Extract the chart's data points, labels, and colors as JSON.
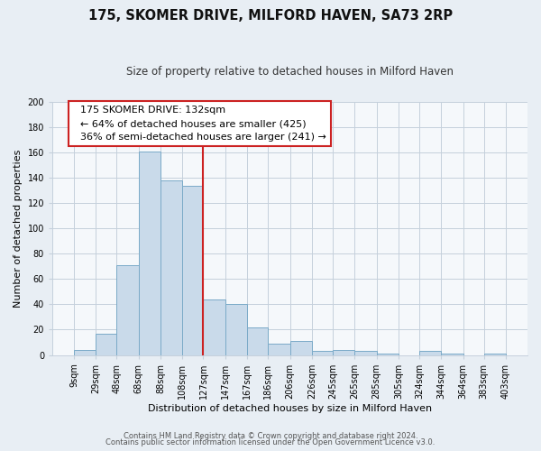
{
  "title": "175, SKOMER DRIVE, MILFORD HAVEN, SA73 2RP",
  "subtitle": "Size of property relative to detached houses in Milford Haven",
  "xlabel": "Distribution of detached houses by size in Milford Haven",
  "ylabel": "Number of detached properties",
  "bar_labels": [
    "9sqm",
    "29sqm",
    "48sqm",
    "68sqm",
    "88sqm",
    "108sqm",
    "127sqm",
    "147sqm",
    "167sqm",
    "186sqm",
    "206sqm",
    "226sqm",
    "245sqm",
    "265sqm",
    "285sqm",
    "305sqm",
    "324sqm",
    "344sqm",
    "364sqm",
    "383sqm",
    "403sqm"
  ],
  "bar_values": [
    4,
    17,
    71,
    161,
    138,
    134,
    44,
    40,
    22,
    9,
    11,
    3,
    4,
    3,
    1,
    0,
    3,
    1,
    0,
    1
  ],
  "bar_color": "#c9daea",
  "bar_edge_color": "#7aaac8",
  "property_line_label": "175 SKOMER DRIVE: 132sqm",
  "annotation_line1": "← 64% of detached houses are smaller (425)",
  "annotation_line2": "36% of semi-detached houses are larger (241) →",
  "vline_x": 127,
  "ylim": [
    0,
    200
  ],
  "yticks": [
    0,
    20,
    40,
    60,
    80,
    100,
    120,
    140,
    160,
    180,
    200
  ],
  "footer1": "Contains HM Land Registry data © Crown copyright and database right 2024.",
  "footer2": "Contains public sector information licensed under the Open Government Licence v3.0.",
  "bg_color": "#e8eef4",
  "plot_bg_color": "#f5f8fb",
  "grid_color": "#c5d0dc",
  "annotation_box_facecolor": "#ffffff",
  "annotation_box_edgecolor": "#cc2222",
  "vline_color": "#cc2222",
  "title_fontsize": 10.5,
  "subtitle_fontsize": 8.5,
  "axis_label_fontsize": 8,
  "tick_fontsize": 7,
  "annotation_fontsize": 8
}
